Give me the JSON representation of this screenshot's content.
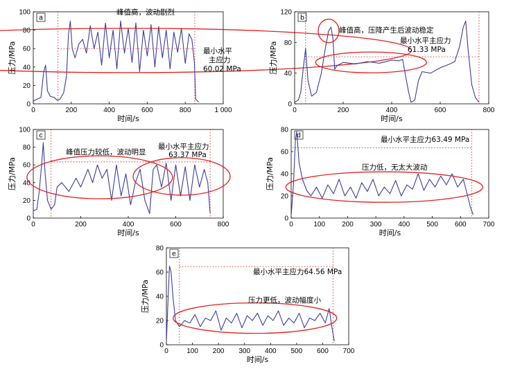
{
  "chart_data": [
    {
      "type": "line",
      "panel_label": "a",
      "xlabel": "时间/s",
      "ylabel": "压力/MPa",
      "xlim": [
        0,
        1000
      ],
      "ylim": [
        0,
        100
      ],
      "xticks": [
        "0",
        "200",
        "400",
        "600",
        "800",
        "1 000"
      ],
      "yticks": [
        "0",
        "20",
        "40",
        "60",
        "80",
        "100"
      ],
      "threshold": 60.02,
      "vlines": [
        130,
        850
      ],
      "annotations": [
        "峰值高，波动剧烈",
        "最小水平",
        "主应力",
        "60.02 MPa"
      ],
      "ellipse": {
        "cx": 495,
        "cy": 58,
        "rx": 410,
        "ry": 32
      },
      "series": [
        {
          "points": [
            [
              0,
              3
            ],
            [
              20,
              5
            ],
            [
              40,
              7
            ],
            [
              55,
              35
            ],
            [
              65,
              42
            ],
            [
              75,
              14
            ],
            [
              90,
              8
            ],
            [
              110,
              7
            ],
            [
              125,
              4
            ],
            [
              140,
              5
            ],
            [
              160,
              12
            ],
            [
              175,
              30
            ],
            [
              185,
              75
            ],
            [
              195,
              90
            ],
            [
              205,
              60
            ],
            [
              220,
              50
            ],
            [
              240,
              65
            ],
            [
              260,
              70
            ],
            [
              280,
              55
            ],
            [
              300,
              85
            ],
            [
              320,
              60
            ],
            [
              340,
              78
            ],
            [
              360,
              42
            ],
            [
              380,
              88
            ],
            [
              400,
              50
            ],
            [
              420,
              80
            ],
            [
              440,
              38
            ],
            [
              460,
              90
            ],
            [
              480,
              55
            ],
            [
              500,
              82
            ],
            [
              520,
              45
            ],
            [
              540,
              88
            ],
            [
              560,
              35
            ],
            [
              580,
              80
            ],
            [
              600,
              52
            ],
            [
              620,
              86
            ],
            [
              640,
              40
            ],
            [
              660,
              84
            ],
            [
              680,
              50
            ],
            [
              700,
              80
            ],
            [
              720,
              38
            ],
            [
              740,
              78
            ],
            [
              760,
              56
            ],
            [
              780,
              82
            ],
            [
              800,
              44
            ],
            [
              820,
              76
            ],
            [
              835,
              70
            ],
            [
              848,
              45
            ],
            [
              855,
              5
            ],
            [
              870,
              2
            ]
          ]
        }
      ]
    },
    {
      "type": "line",
      "panel_label": "b",
      "xlabel": "时间/s",
      "ylabel": "压力/MPa",
      "xlim": [
        0,
        800
      ],
      "ylim": [
        0,
        120
      ],
      "xticks": [
        "0",
        "200",
        "400",
        "600",
        "800"
      ],
      "yticks": [
        "0",
        "40",
        "80",
        "120"
      ],
      "threshold": 61.33,
      "vlines": [
        45,
        760
      ],
      "annotations": [
        "峰值高，压降产生后波动稳定",
        "最小水平主应力",
        "61.33 MPa"
      ],
      "series": [
        {
          "points": [
            [
              0,
              2
            ],
            [
              15,
              5
            ],
            [
              25,
              15
            ],
            [
              35,
              45
            ],
            [
              45,
              72
            ],
            [
              55,
              30
            ],
            [
              70,
              10
            ],
            [
              90,
              15
            ],
            [
              110,
              40
            ],
            [
              125,
              70
            ],
            [
              140,
              95
            ],
            [
              150,
              100
            ],
            [
              158,
              85
            ],
            [
              165,
              45
            ],
            [
              175,
              50
            ],
            [
              200,
              54
            ],
            [
              250,
              52
            ],
            [
              300,
              55
            ],
            [
              350,
              53
            ],
            [
              400,
              57
            ],
            [
              430,
              56
            ],
            [
              445,
              58
            ],
            [
              455,
              40
            ],
            [
              470,
              15
            ],
            [
              480,
              2
            ],
            [
              495,
              5
            ],
            [
              510,
              30
            ],
            [
              525,
              42
            ],
            [
              560,
              40
            ],
            [
              600,
              47
            ],
            [
              640,
              52
            ],
            [
              660,
              55
            ],
            [
              680,
              75
            ],
            [
              695,
              100
            ],
            [
              705,
              108
            ],
            [
              715,
              70
            ],
            [
              730,
              25
            ],
            [
              745,
              8
            ],
            [
              760,
              2
            ]
          ]
        }
      ]
    },
    {
      "type": "line",
      "panel_label": "c",
      "xlabel": "时间/s",
      "ylabel": "压力/MPa",
      "xlim": [
        0,
        800
      ],
      "ylim": [
        0,
        100
      ],
      "xticks": [
        "0",
        "200",
        "400",
        "600",
        "800"
      ],
      "yticks": [
        "0",
        "20",
        "40",
        "60",
        "80",
        "100"
      ],
      "threshold": 63.37,
      "vlines": [
        75,
        745
      ],
      "annotations": [
        "峰值压力较低，波动明显",
        "最小水平主应力",
        "63.37 MPa"
      ],
      "series": [
        {
          "points": [
            [
              0,
              8
            ],
            [
              15,
              10
            ],
            [
              25,
              30
            ],
            [
              35,
              60
            ],
            [
              42,
              85
            ],
            [
              50,
              50
            ],
            [
              60,
              20
            ],
            [
              75,
              10
            ],
            [
              90,
              15
            ],
            [
              100,
              35
            ],
            [
              120,
              40
            ],
            [
              150,
              30
            ],
            [
              180,
              45
            ],
            [
              200,
              35
            ],
            [
              230,
              55
            ],
            [
              250,
              40
            ],
            [
              270,
              60
            ],
            [
              290,
              45
            ],
            [
              310,
              55
            ],
            [
              330,
              20
            ],
            [
              350,
              60
            ],
            [
              370,
              25
            ],
            [
              390,
              50
            ],
            [
              410,
              15
            ],
            [
              430,
              40
            ],
            [
              450,
              55
            ],
            [
              470,
              20
            ],
            [
              490,
              5
            ],
            [
              505,
              55
            ],
            [
              520,
              60
            ],
            [
              540,
              35
            ],
            [
              560,
              62
            ],
            [
              580,
              20
            ],
            [
              600,
              60
            ],
            [
              620,
              25
            ],
            [
              640,
              58
            ],
            [
              660,
              20
            ],
            [
              680,
              60
            ],
            [
              700,
              35
            ],
            [
              720,
              55
            ],
            [
              735,
              40
            ],
            [
              745,
              5
            ]
          ]
        }
      ]
    },
    {
      "type": "line",
      "panel_label": "d",
      "xlabel": "时间/s",
      "ylabel": "压力/MPa",
      "xlim": [
        0,
        700
      ],
      "ylim": [
        0,
        80
      ],
      "xticks": [
        "0",
        "100",
        "200",
        "300",
        "400",
        "500",
        "600",
        "700"
      ],
      "yticks": [
        "0",
        "20",
        "40",
        "60",
        "80"
      ],
      "threshold": 63.49,
      "vlines": [
        640
      ],
      "annotations": [
        "最小水平主应力63.49 MPa",
        "压力低，无太大波动"
      ],
      "series": [
        {
          "points": [
            [
              0,
              2
            ],
            [
              8,
              30
            ],
            [
              15,
              70
            ],
            [
              20,
              78
            ],
            [
              28,
              50
            ],
            [
              40,
              35
            ],
            [
              55,
              25
            ],
            [
              70,
              20
            ],
            [
              90,
              28
            ],
            [
              110,
              18
            ],
            [
              130,
              30
            ],
            [
              150,
              22
            ],
            [
              170,
              35
            ],
            [
              190,
              20
            ],
            [
              210,
              28
            ],
            [
              230,
              18
            ],
            [
              250,
              32
            ],
            [
              270,
              24
            ],
            [
              290,
              35
            ],
            [
              310,
              20
            ],
            [
              330,
              28
            ],
            [
              350,
              22
            ],
            [
              370,
              34
            ],
            [
              390,
              20
            ],
            [
              410,
              30
            ],
            [
              430,
              26
            ],
            [
              450,
              40
            ],
            [
              470,
              25
            ],
            [
              490,
              35
            ],
            [
              510,
              28
            ],
            [
              530,
              38
            ],
            [
              550,
              30
            ],
            [
              570,
              40
            ],
            [
              590,
              28
            ],
            [
              610,
              35
            ],
            [
              625,
              20
            ],
            [
              635,
              10
            ],
            [
              645,
              3
            ]
          ]
        }
      ]
    },
    {
      "type": "line",
      "panel_label": "e",
      "xlabel": "时间/s",
      "ylabel": "压力/MPa",
      "xlim": [
        0,
        700
      ],
      "ylim": [
        0,
        80
      ],
      "xticks": [
        "0",
        "100",
        "200",
        "300",
        "400",
        "500",
        "600",
        "700"
      ],
      "yticks": [
        "0",
        "20",
        "40",
        "60",
        "80"
      ],
      "threshold": 64.56,
      "vlines": [
        50,
        640
      ],
      "annotations": [
        "最小水平主应力64.56 MPa",
        "压力更低，波动幅度小"
      ],
      "series": [
        {
          "points": [
            [
              0,
              2
            ],
            [
              5,
              30
            ],
            [
              12,
              65
            ],
            [
              18,
              60
            ],
            [
              25,
              40
            ],
            [
              35,
              20
            ],
            [
              50,
              15
            ],
            [
              70,
              20
            ],
            [
              90,
              18
            ],
            [
              110,
              25
            ],
            [
              130,
              15
            ],
            [
              150,
              22
            ],
            [
              170,
              20
            ],
            [
              190,
              28
            ],
            [
              210,
              12
            ],
            [
              230,
              22
            ],
            [
              250,
              18
            ],
            [
              270,
              26
            ],
            [
              290,
              14
            ],
            [
              310,
              24
            ],
            [
              330,
              20
            ],
            [
              350,
              26
            ],
            [
              370,
              16
            ],
            [
              390,
              24
            ],
            [
              410,
              20
            ],
            [
              430,
              28
            ],
            [
              450,
              16
            ],
            [
              470,
              22
            ],
            [
              490,
              18
            ],
            [
              510,
              26
            ],
            [
              530,
              14
            ],
            [
              550,
              22
            ],
            [
              570,
              20
            ],
            [
              590,
              26
            ],
            [
              610,
              18
            ],
            [
              625,
              30
            ],
            [
              635,
              15
            ],
            [
              645,
              3
            ]
          ]
        }
      ]
    }
  ]
}
